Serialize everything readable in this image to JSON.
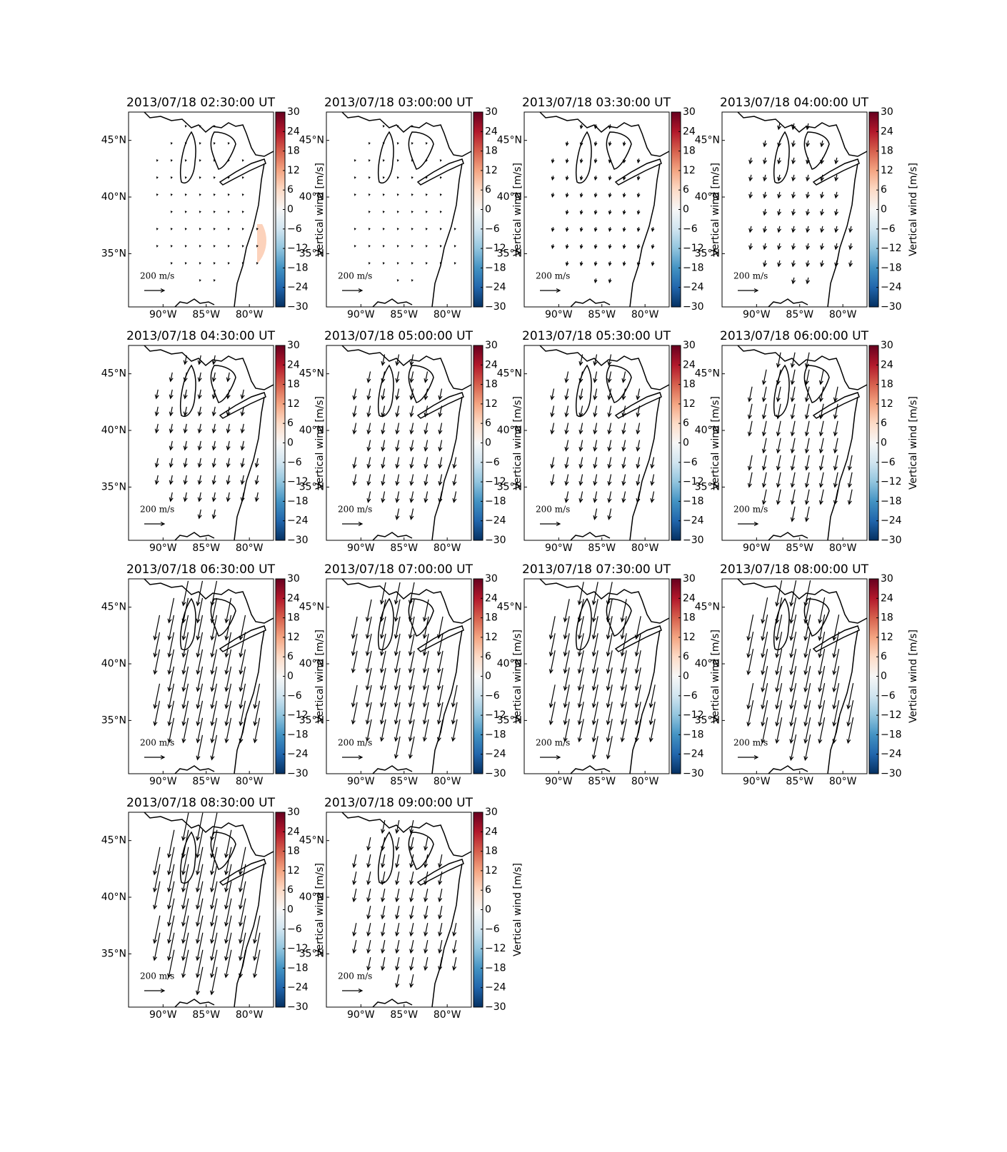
{
  "chart_data": {
    "type": "map-grid",
    "colorbar_label": "Vertical wind [m/s]",
    "clim": [
      -30,
      30
    ],
    "cticks": [
      {
        "value": -30,
        "label": "−30"
      },
      {
        "value": -24,
        "label": "−24"
      },
      {
        "value": -18,
        "label": "−18"
      },
      {
        "value": -12,
        "label": "−12"
      },
      {
        "value": -6,
        "label": "−6"
      },
      0,
      6,
      12,
      18,
      24,
      30
    ],
    "xlim": [
      -94,
      -77.2
    ],
    "xticks": [
      {
        "value": -90,
        "label": "90°W"
      },
      {
        "value": -85,
        "label": "85°W"
      },
      {
        "value": -80,
        "label": "80°W"
      }
    ],
    "ylim": [
      30.3,
      47.5
    ],
    "yticks": [
      {
        "value": 35,
        "label": "35°N"
      },
      {
        "value": 40,
        "label": "40°N"
      },
      {
        "value": 45,
        "label": "45°N"
      }
    ],
    "reference_arrow": {
      "value": 200,
      "label": "200 m/s"
    },
    "panels": [
      {
        "title": "2013/07/18 02:30:00 UT",
        "vertical_wind": 7,
        "horizontal_wind": 8
      },
      {
        "title": "2013/07/18 03:00:00 UT",
        "vertical_wind": 3,
        "horizontal_wind": 8
      },
      {
        "title": "2013/07/18 03:30:00 UT",
        "vertical_wind": -1,
        "horizontal_wind": 40
      },
      {
        "title": "2013/07/18 04:00:00 UT",
        "vertical_wind": 1,
        "horizontal_wind": 60
      },
      {
        "title": "2013/07/18 04:30:00 UT",
        "vertical_wind": -2,
        "horizontal_wind": 90
      },
      {
        "title": "2013/07/18 05:00:00 UT",
        "vertical_wind": 4,
        "horizontal_wind": 110
      },
      {
        "title": "2013/07/18 05:30:00 UT",
        "vertical_wind": 1,
        "horizontal_wind": 110
      },
      {
        "title": "2013/07/18 06:00:00 UT",
        "vertical_wind": -5,
        "horizontal_wind": 150
      },
      {
        "title": "2013/07/18 06:30:00 UT",
        "vertical_wind": -6,
        "horizontal_wind": 250
      },
      {
        "title": "2013/07/18 07:00:00 UT",
        "vertical_wind": -9,
        "horizontal_wind": 220
      },
      {
        "title": "2013/07/18 07:30:00 UT",
        "vertical_wind": -5,
        "horizontal_wind": 230
      },
      {
        "title": "2013/07/18 08:00:00 UT",
        "vertical_wind": 9,
        "horizontal_wind": 260
      },
      {
        "title": "2013/07/18 08:30:00 UT",
        "vertical_wind": 8,
        "horizontal_wind": 280
      },
      {
        "title": "2013/07/18 09:00:00 UT",
        "vertical_wind": -9,
        "horizontal_wind": 130
      }
    ]
  }
}
